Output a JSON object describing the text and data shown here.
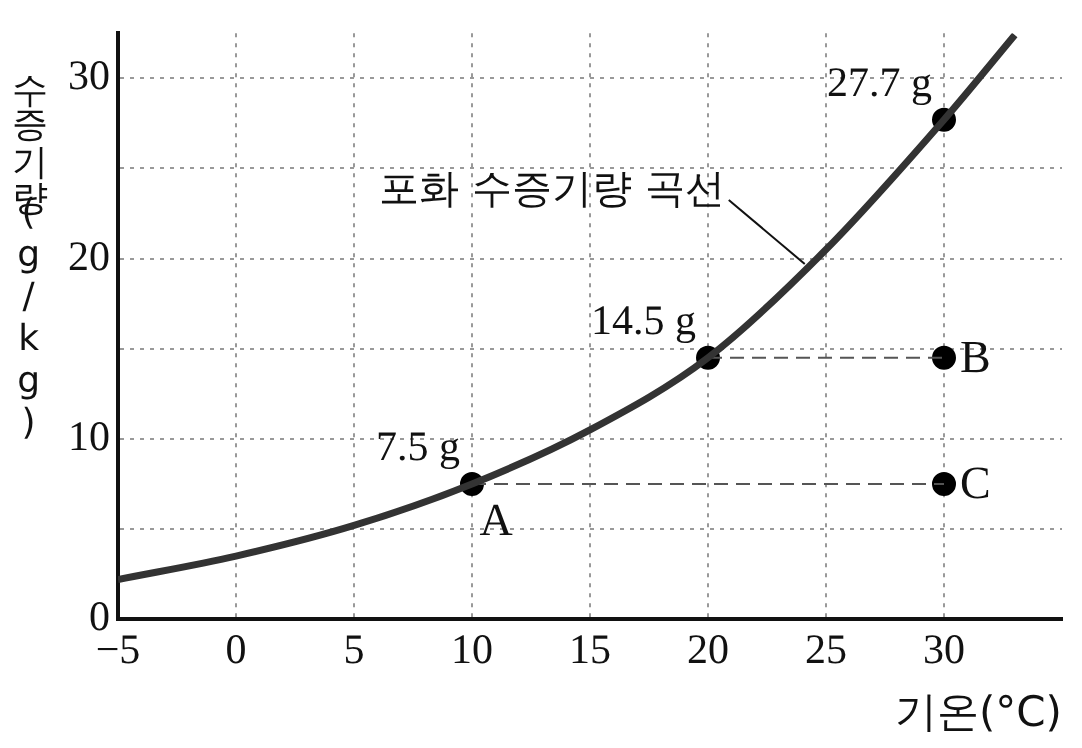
{
  "chart_data": {
    "type": "line",
    "xlabel": "기온(°C)",
    "ylabel": "수증기량(g/kg)",
    "xlim": [
      -5,
      35
    ],
    "ylim": [
      0,
      32.5
    ],
    "xticks": [
      {
        "value": -5,
        "label": "−5"
      },
      0,
      5,
      10,
      15,
      20,
      25,
      30
    ],
    "yticks": [
      0,
      {
        "value": 5,
        "label": null
      },
      10,
      {
        "value": 15,
        "label": null
      },
      20,
      {
        "value": 25,
        "label": null
      },
      30
    ],
    "grid": true,
    "legend": false,
    "series": [
      {
        "color": "#333333",
        "marker": "none",
        "line_style": "solid",
        "x": [
          -5,
          0,
          5,
          10,
          15,
          20,
          25,
          30,
          33
        ],
        "values": [
          2.2,
          3.5,
          5.2,
          7.5,
          10.5,
          14.5,
          20.5,
          27.7,
          32.4
        ]
      },
      {
        "type": "line",
        "color": "#555555",
        "marker": "none",
        "line_style": "dashed",
        "x": [
          20,
          30
        ],
        "values": [
          14.5,
          14.5
        ]
      },
      {
        "type": "line",
        "color": "#555555",
        "marker": "none",
        "line_style": "dashed",
        "x": [
          10,
          30
        ],
        "values": [
          7.5,
          7.5
        ]
      },
      {
        "type": "scatter",
        "color": "#000000",
        "marker": "circle",
        "x": [
          10,
          20,
          30,
          30,
          30
        ],
        "values": [
          7.5,
          14.5,
          27.7,
          14.5,
          7.5
        ],
        "value_labels": [
          "7.5 g",
          "14.5 g",
          "27.7 g",
          null,
          null
        ]
      }
    ],
    "annotations": [
      {
        "text": "포화 수증기량 곡선",
        "x": 24.1,
        "y": 19.7
      },
      {
        "text": "A",
        "x": 10,
        "y": 7.5
      },
      {
        "text": "B",
        "x": 30,
        "y": 14.5
      },
      {
        "text": "C",
        "x": 30,
        "y": 7.5
      }
    ]
  }
}
